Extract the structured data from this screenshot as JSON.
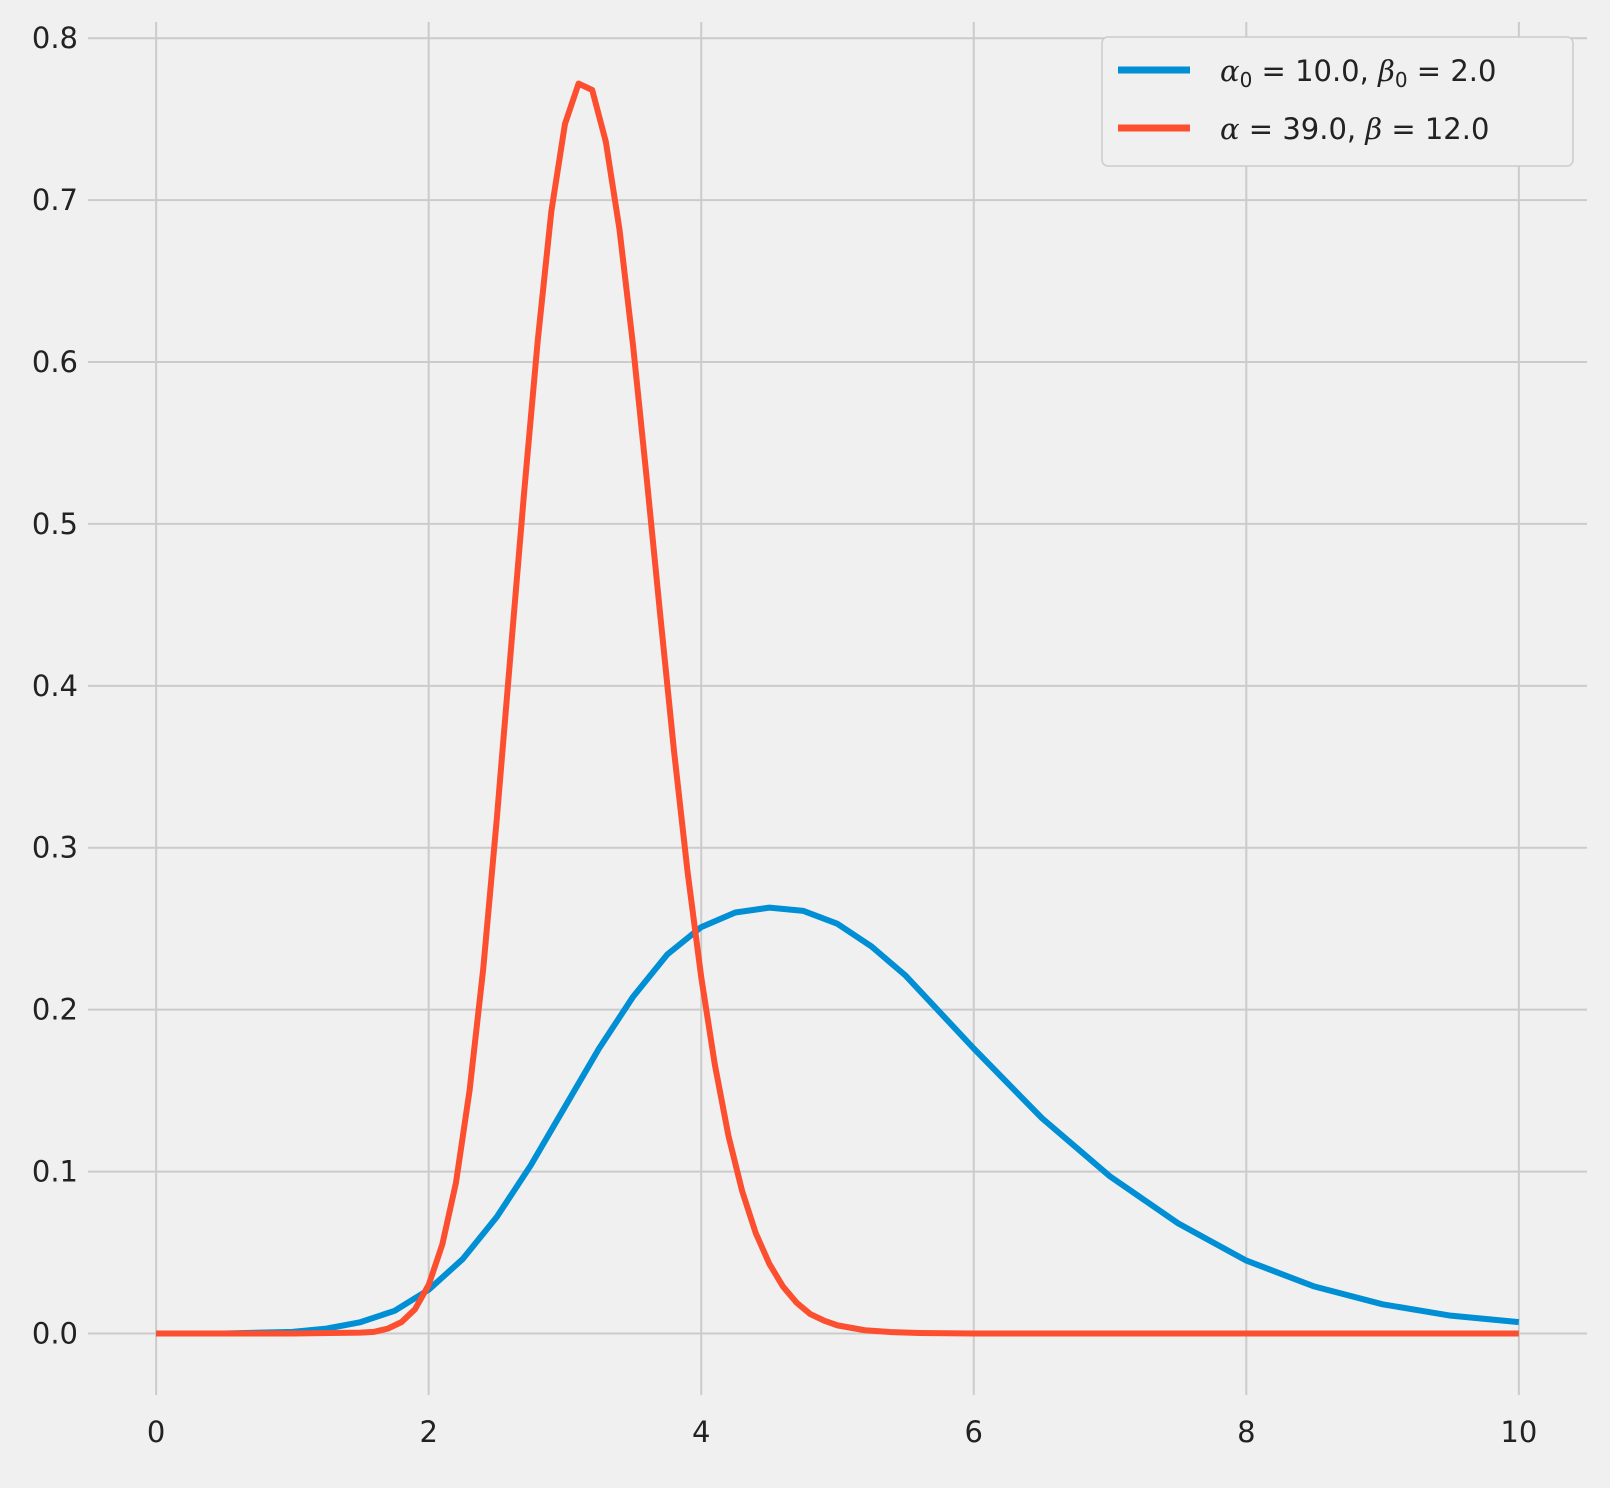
{
  "chart_data": {
    "type": "line",
    "title": "",
    "xlabel": "",
    "ylabel": "",
    "xlim": [
      -0.5,
      10.5
    ],
    "ylim": [
      -0.038,
      0.81
    ],
    "x_ticks": [
      "0",
      "2",
      "4",
      "6",
      "8",
      "10"
    ],
    "y_ticks": [
      "0.0",
      "0.1",
      "0.2",
      "0.3",
      "0.4",
      "0.5",
      "0.6",
      "0.7",
      "0.8"
    ],
    "grid": true,
    "legend_position": "top-right",
    "legend": {
      "prior": {
        "alpha_sym": "α",
        "alpha_sub": "0",
        "alpha_val": " = 10.0, ",
        "beta_sym": "β",
        "beta_sub": "0",
        "beta_val": " = 2.0"
      },
      "posterior": {
        "alpha_sym": "α",
        "alpha_val": " = 39.0, ",
        "beta_sym": "β",
        "beta_val": " = 12.0"
      }
    },
    "colors": {
      "prior": "#008fd5",
      "posterior": "#fc4f30"
    },
    "series": [
      {
        "color": "#008fd5",
        "x": [
          0,
          0.5,
          1.0,
          1.25,
          1.5,
          1.75,
          2.0,
          2.25,
          2.5,
          2.75,
          3.0,
          3.25,
          3.5,
          3.75,
          4.0,
          4.25,
          4.5,
          4.75,
          5.0,
          5.25,
          5.5,
          6.0,
          6.5,
          7.0,
          7.5,
          8.0,
          8.5,
          9.0,
          9.5,
          10.0
        ],
        "y": [
          0.0,
          0.0,
          0.001,
          0.003,
          0.007,
          0.014,
          0.027,
          0.046,
          0.072,
          0.104,
          0.14,
          0.176,
          0.208,
          0.234,
          0.251,
          0.26,
          0.263,
          0.261,
          0.253,
          0.239,
          0.221,
          0.176,
          0.133,
          0.097,
          0.068,
          0.045,
          0.029,
          0.018,
          0.011,
          0.007
        ]
      },
      {
        "color": "#fc4f30",
        "x": [
          0,
          1.0,
          1.5,
          1.6,
          1.7,
          1.8,
          1.9,
          2.0,
          2.1,
          2.2,
          2.3,
          2.4,
          2.5,
          2.6,
          2.7,
          2.8,
          2.9,
          3.0,
          3.1,
          3.2,
          3.3,
          3.4,
          3.5,
          3.6,
          3.7,
          3.8,
          3.9,
          4.0,
          4.1,
          4.2,
          4.3,
          4.4,
          4.5,
          4.6,
          4.7,
          4.8,
          4.9,
          5.0,
          5.2,
          5.4,
          5.6,
          6.0,
          7.0,
          8.0,
          10.0
        ],
        "y": [
          0.0,
          0.0,
          0.0005,
          0.001,
          0.003,
          0.007,
          0.015,
          0.03,
          0.055,
          0.093,
          0.15,
          0.225,
          0.318,
          0.419,
          0.519,
          0.613,
          0.693,
          0.747,
          0.772,
          0.768,
          0.736,
          0.682,
          0.61,
          0.528,
          0.443,
          0.36,
          0.285,
          0.22,
          0.166,
          0.122,
          0.088,
          0.062,
          0.043,
          0.029,
          0.019,
          0.012,
          0.008,
          0.005,
          0.002,
          0.0008,
          0.0003,
          0.0,
          0.0,
          0.0,
          0.0
        ]
      }
    ]
  }
}
